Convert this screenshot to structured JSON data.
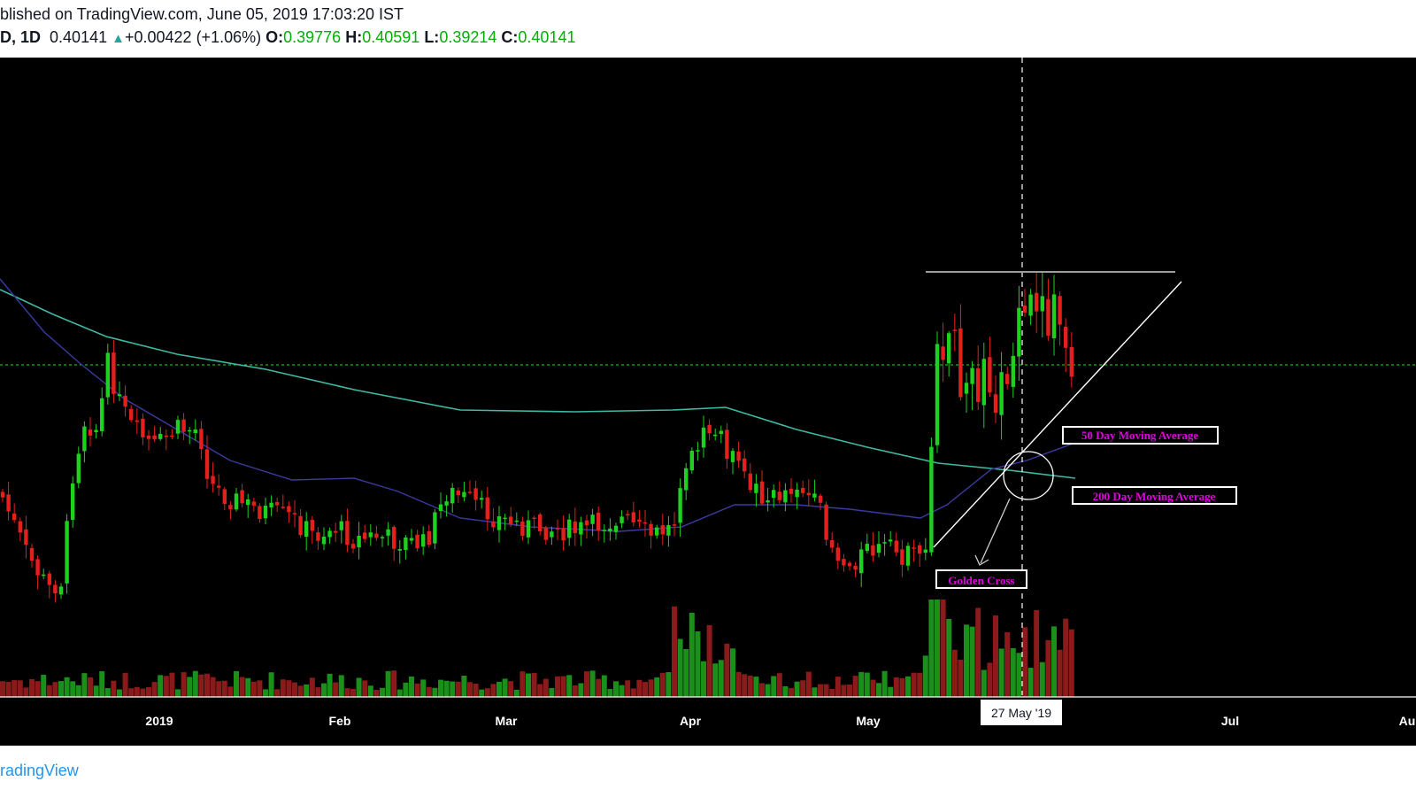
{
  "header": {
    "published_line": "blished on TradingView.com, June 05, 2019 17:03:20 IST",
    "symbol_interval": "D, 1D",
    "last_price": "0.40141",
    "change_arrow": "▲",
    "change": "+0.00422 (+1.06%)",
    "open_label": "O:",
    "open": "0.39776",
    "high_label": "H:",
    "high": "0.40591",
    "low_label": "L:",
    "low": "0.39214",
    "close_label": "C:",
    "close": "0.40141"
  },
  "footer": {
    "brand": "radingView"
  },
  "colors": {
    "background": "#000000",
    "up": "#1fd11f",
    "down": "#e3201b",
    "volume_up": "#1a8f1a",
    "volume_down": "#8b1a1a",
    "ma50": "#3a3aa0",
    "ma200": "#3fb8a4",
    "price_line": "#22e022",
    "annotation_text": "#e000e0"
  },
  "chart_data": {
    "type": "candlestick",
    "x_tick_labels": [
      "2019",
      "Feb",
      "Mar",
      "Apr",
      "May",
      "Jul",
      "Au"
    ],
    "crosshair_date_label": "27 May '19",
    "annotations": [
      "50 Day Moving Average",
      "200 Day Moving Average",
      "Golden Cross"
    ],
    "current_price": 0.40141
  }
}
